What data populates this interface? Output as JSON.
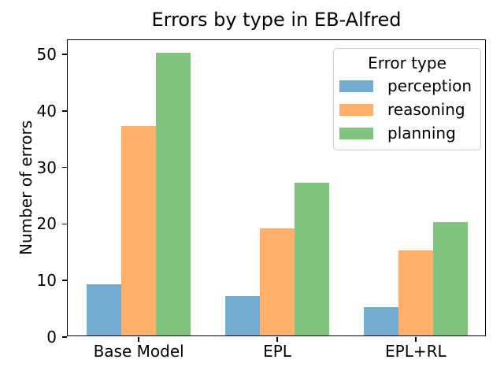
{
  "chart_data": {
    "type": "bar",
    "title": "Errors by type in EB-Alfred",
    "xlabel": "",
    "ylabel": "Number of errors",
    "categories": [
      "Base Model",
      "EPL",
      "EPL+RL"
    ],
    "series": [
      {
        "name": "perception",
        "color": "#74ABD0",
        "values": [
          9,
          7,
          5
        ]
      },
      {
        "name": "reasoning",
        "color": "#FFB06C",
        "values": [
          37,
          19,
          15
        ]
      },
      {
        "name": "planning",
        "color": "#80C480",
        "values": [
          50,
          27,
          20
        ]
      }
    ],
    "legend": {
      "title": "Error type",
      "position": "upper right"
    },
    "ylim": [
      0,
      52.5
    ],
    "yticks": [
      0,
      10,
      20,
      30,
      40,
      50
    ],
    "grid": false,
    "axis_color": "#000000",
    "background_color": "#ffffff"
  }
}
